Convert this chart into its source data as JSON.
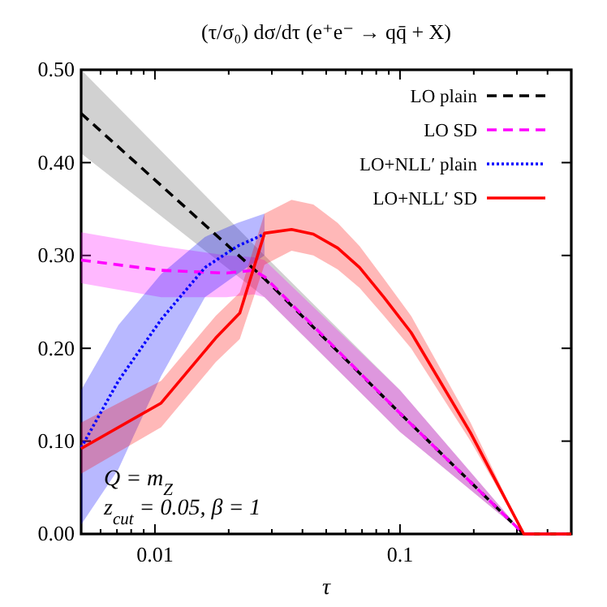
{
  "chart_data": {
    "type": "line",
    "title": "(τ/σ₀) dσ/dτ (e⁺e⁻ → qq̄ + X)",
    "xlabel": "τ",
    "log": "x",
    "xlim": [
      0.005,
      0.5
    ],
    "ylim": [
      0,
      0.5
    ],
    "xticks": [
      {
        "value": 0.006,
        "label": null
      },
      {
        "value": 0.007,
        "label": null
      },
      {
        "value": 0.008,
        "label": null
      },
      {
        "value": 0.009,
        "label": null
      },
      0.01,
      {
        "value": 0.02,
        "label": null
      },
      {
        "value": 0.03,
        "label": null
      },
      {
        "value": 0.04,
        "label": null
      },
      {
        "value": 0.05,
        "label": null
      },
      {
        "value": 0.06,
        "label": null
      },
      {
        "value": 0.07,
        "label": null
      },
      {
        "value": 0.08,
        "label": null
      },
      {
        "value": 0.09,
        "label": null
      },
      0.1,
      {
        "value": 0.2,
        "label": null
      },
      {
        "value": 0.3,
        "label": null
      },
      {
        "value": 0.4,
        "label": null
      },
      {
        "value": 0.5,
        "label": null
      }
    ],
    "yticks": [
      {
        "value": 0,
        "label": "0.00"
      },
      {
        "value": 0.1,
        "label": "0.10"
      },
      {
        "value": 0.2,
        "label": "0.20"
      },
      {
        "value": 0.3,
        "label": "0.30"
      },
      {
        "value": 0.4,
        "label": "0.40"
      },
      {
        "value": 0.5,
        "label": "0.50"
      }
    ],
    "grid": false,
    "legend": "top right",
    "annotations": [
      "Q = m$_{Z}$",
      "z$_{cut}$ = 0.05, β = 1"
    ],
    "series": [
      {
        "name": "LO plain",
        "color": "#000000",
        "line_style": "dashed",
        "x": [
          0.005,
          0.028,
          0.1,
          0.32,
          0.5
        ],
        "values": [
          0.453,
          0.275,
          0.13,
          0,
          0
        ],
        "lower": [
          0.41,
          0.255,
          0.11,
          0,
          0
        ],
        "upper": [
          0.5,
          0.3,
          0.155,
          0,
          0
        ]
      },
      {
        "name": "LO SD",
        "color": "#ff00ff",
        "line_style": "dashed",
        "x": [
          0.005,
          0.0106,
          0.0196,
          0.0253,
          0.028,
          0.1,
          0.32,
          0.5
        ],
        "values": [
          0.295,
          0.284,
          0.281,
          0.284,
          0.277,
          0.13,
          0,
          0
        ],
        "lower": [
          0.27,
          0.255,
          0.255,
          0.258,
          0.255,
          0.11,
          0,
          0
        ],
        "upper": [
          0.325,
          0.31,
          0.3,
          0.298,
          0.295,
          0.155,
          0,
          0
        ]
      },
      {
        "name": "LO+NLL′ plain",
        "color": "#0000ff",
        "line_style": "dotted",
        "x": [
          0.005,
          0.0071,
          0.0106,
          0.016,
          0.0217,
          0.028
        ],
        "values": [
          0.093,
          0.165,
          0.231,
          0.287,
          0.31,
          0.323
        ],
        "lower": [
          0.01,
          0.07,
          0.17,
          0.255,
          0.28,
          0.3
        ],
        "upper": [
          0.155,
          0.225,
          0.28,
          0.32,
          0.335,
          0.345
        ]
      },
      {
        "name": "LO+NLL′ SD",
        "color": "#ff0000",
        "line_style": "solid",
        "x": [
          0.005,
          0.0106,
          0.0177,
          0.0222,
          0.028,
          0.0361,
          0.0443,
          0.0557,
          0.0684,
          0.086,
          0.111,
          0.194,
          0.32,
          0.5
        ],
        "values": [
          0.092,
          0.141,
          0.211,
          0.238,
          0.324,
          0.328,
          0.323,
          0.308,
          0.287,
          0.255,
          0.217,
          0.109,
          0,
          0
        ],
        "lower": [
          0.065,
          0.115,
          0.185,
          0.21,
          0.29,
          0.305,
          0.3,
          0.285,
          0.265,
          0.235,
          0.2,
          0.1,
          0,
          0
        ],
        "upper": [
          0.12,
          0.165,
          0.235,
          0.26,
          0.345,
          0.36,
          0.355,
          0.335,
          0.31,
          0.275,
          0.235,
          0.12,
          0,
          0
        ]
      }
    ]
  }
}
